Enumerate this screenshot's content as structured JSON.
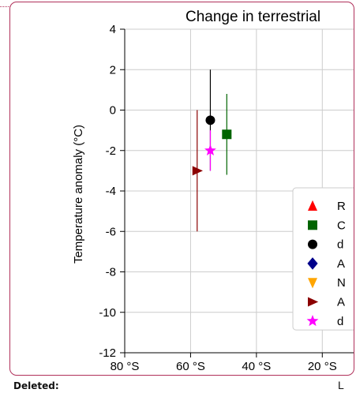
{
  "comment": {
    "deleted_label": "Deleted:",
    "trailing_char": "L"
  },
  "chart_data": {
    "type": "scatter",
    "title": "Change in terrestrial",
    "xlabel": "",
    "ylabel": "Temperature anomaly (°C)",
    "xlim": [
      80,
      10
    ],
    "ylim": [
      -12,
      4
    ],
    "grid": true,
    "x_ticks": [
      80,
      60,
      40,
      20
    ],
    "x_tick_labels": [
      "80 °S",
      "60 °S",
      "40 °S",
      "20 °S"
    ],
    "y_ticks": [
      4,
      2,
      0,
      -2,
      -4,
      -6,
      -8,
      -10,
      -12
    ],
    "y_tick_labels": [
      "4",
      "2",
      "0",
      "-2",
      "-4",
      "-6",
      "-8",
      "-10",
      "-12"
    ],
    "legend_position": "bottom-right",
    "series": [
      {
        "name": "R",
        "marker": "triangle-up",
        "color": "#ff0000",
        "points": []
      },
      {
        "name": "C",
        "marker": "square",
        "color": "#006400",
        "points": [
          {
            "x": 49,
            "y": -1.2,
            "yerr_low": -3.2,
            "yerr_high": 0.8
          }
        ]
      },
      {
        "name": "d",
        "marker": "circle",
        "color": "#000000",
        "points": [
          {
            "x": 54,
            "y": -0.5,
            "yerr_low": -3.0,
            "yerr_high": 2.0
          }
        ]
      },
      {
        "name": "A",
        "marker": "diamond",
        "color": "#00008b",
        "points": []
      },
      {
        "name": "N",
        "marker": "triangle-down",
        "color": "#ffa500",
        "points": []
      },
      {
        "name": "A",
        "marker": "triangle-right",
        "color": "#8b0000",
        "points": [
          {
            "x": 58,
            "y": -3.0,
            "yerr_low": -6.0,
            "yerr_high": 0.0
          }
        ]
      },
      {
        "name": "d",
        "marker": "star",
        "color": "#ff00ff",
        "points": [
          {
            "x": 54,
            "y": -2.0,
            "yerr_low": -3.0,
            "yerr_high": -1.0
          }
        ]
      }
    ]
  }
}
